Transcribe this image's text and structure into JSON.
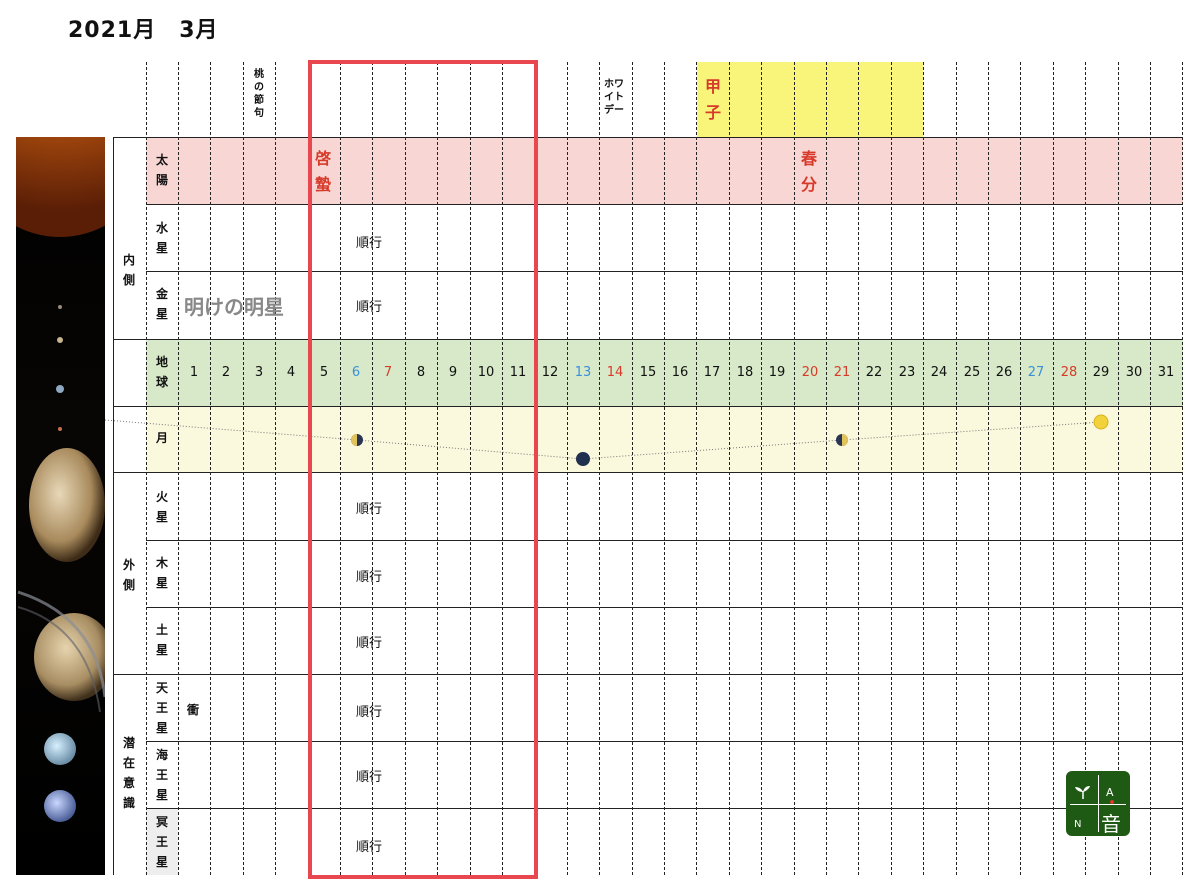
{
  "title": "2021月　3月",
  "events": {
    "momo": [
      "桃",
      "の",
      "節",
      "句"
    ],
    "white_day": [
      "ホ",
      "ワ",
      "イ",
      "ト",
      "デ",
      "ー"
    ],
    "white_day_lines": [
      "ホワ",
      "イト",
      "デー"
    ],
    "kinoene": [
      "甲",
      "子"
    ],
    "keichitsu": [
      "啓",
      "蟄"
    ],
    "shunbun": [
      "春",
      "分"
    ]
  },
  "rows": {
    "sun": [
      "太",
      "陽"
    ],
    "mercury": [
      "水",
      "星"
    ],
    "venus": [
      "金",
      "星"
    ],
    "earth": [
      "地",
      "球"
    ],
    "moon": "月",
    "mars": [
      "火",
      "星"
    ],
    "jupiter": [
      "木",
      "星"
    ],
    "saturn": [
      "土",
      "星"
    ],
    "uranus": [
      "天",
      "王",
      "星"
    ],
    "neptune": [
      "海",
      "王",
      "星"
    ],
    "pluto": [
      "冥",
      "王",
      "星"
    ]
  },
  "groups": {
    "inner": [
      "内",
      "側"
    ],
    "outer": [
      "外",
      "側"
    ],
    "subconscious": [
      "潜",
      "在",
      "意",
      "識"
    ]
  },
  "notes": {
    "mercury": "順行",
    "venus_label": "明けの明星",
    "venus": "順行",
    "mars": "順行",
    "jupiter": "順行",
    "saturn": "順行",
    "uranus_opposition": "衝",
    "uranus": "順行",
    "neptune": "順行",
    "pluto": "順行"
  },
  "days": [
    {
      "d": "1",
      "c": "#111111"
    },
    {
      "d": "2",
      "c": "#111111"
    },
    {
      "d": "3",
      "c": "#111111"
    },
    {
      "d": "4",
      "c": "#111111"
    },
    {
      "d": "5",
      "c": "#111111"
    },
    {
      "d": "6",
      "c": "#3b8fd9"
    },
    {
      "d": "7",
      "c": "#d83a2a"
    },
    {
      "d": "8",
      "c": "#111111"
    },
    {
      "d": "9",
      "c": "#111111"
    },
    {
      "d": "10",
      "c": "#111111"
    },
    {
      "d": "11",
      "c": "#111111"
    },
    {
      "d": "12",
      "c": "#111111"
    },
    {
      "d": "13",
      "c": "#3b8fd9"
    },
    {
      "d": "14",
      "c": "#d83a2a"
    },
    {
      "d": "15",
      "c": "#111111"
    },
    {
      "d": "16",
      "c": "#111111"
    },
    {
      "d": "17",
      "c": "#111111"
    },
    {
      "d": "18",
      "c": "#111111"
    },
    {
      "d": "19",
      "c": "#111111"
    },
    {
      "d": "20",
      "c": "#d83a2a"
    },
    {
      "d": "21",
      "c": "#d83a2a"
    },
    {
      "d": "22",
      "c": "#111111"
    },
    {
      "d": "23",
      "c": "#111111"
    },
    {
      "d": "24",
      "c": "#111111"
    },
    {
      "d": "25",
      "c": "#111111"
    },
    {
      "d": "26",
      "c": "#111111"
    },
    {
      "d": "27",
      "c": "#3b8fd9"
    },
    {
      "d": "28",
      "c": "#d83a2a"
    },
    {
      "d": "29",
      "c": "#111111"
    },
    {
      "d": "30",
      "c": "#111111"
    },
    {
      "d": "31",
      "c": "#111111"
    }
  ],
  "moon_phases": [
    {
      "day": 6,
      "phase": "last-quarter",
      "icon": "half-moon-icon"
    },
    {
      "day": 13,
      "phase": "new-moon",
      "icon": "new-moon-icon"
    },
    {
      "day": 21,
      "phase": "first-quarter",
      "icon": "half-moon-icon"
    },
    {
      "day": 29,
      "phase": "full-moon",
      "icon": "full-moon-icon"
    }
  ],
  "highlight_days": [
    5,
    11
  ],
  "logo": {
    "letters": [
      "N",
      "A",
      "音"
    ],
    "icon": "sprout-icon"
  },
  "colors": {
    "sun_band": "#f7d6d4",
    "earth_band": "#d7e9c8",
    "moon_band": "#fbf9dd",
    "kinoene_band": "#f8f57a",
    "highlight_frame": "#e8474f",
    "red_text": "#d83a2a",
    "logo_green": "#1f5a14"
  }
}
